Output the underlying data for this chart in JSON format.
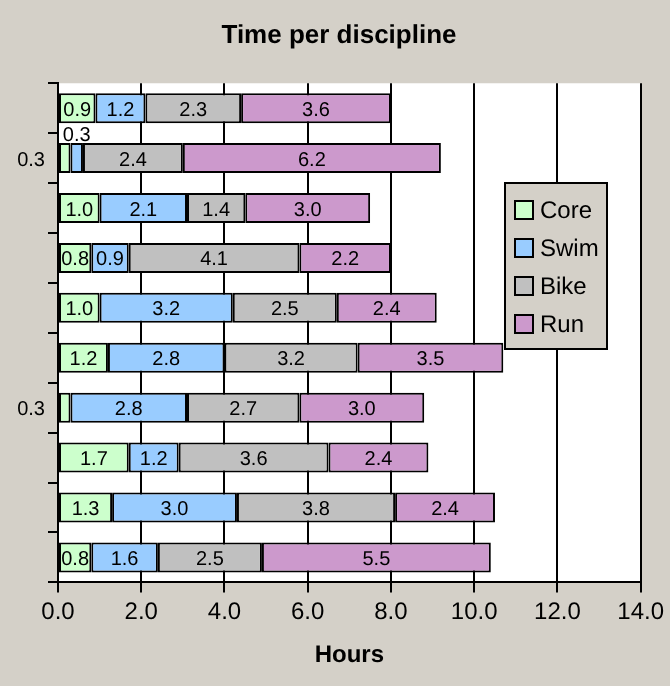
{
  "chart_data": {
    "type": "bar",
    "orientation": "horizontal",
    "stacked": true,
    "title": "Time per discipline",
    "xlabel": "Hours",
    "categories": [
      null,
      null,
      null,
      null,
      null,
      null,
      null,
      null,
      null,
      null
    ],
    "series": [
      {
        "name": "Core",
        "color": "#ccffcc",
        "values": [
          0.9,
          0.3,
          1.0,
          0.8,
          1.0,
          1.2,
          0.3,
          1.7,
          1.3,
          0.8
        ],
        "value_labels": [
          "0.9",
          "0.3",
          "1.0",
          "0.8",
          "1.0",
          "1.2",
          "0.3",
          "1.7",
          "1.3",
          "0.8"
        ]
      },
      {
        "name": "Swim",
        "color": "#99ccff",
        "values": [
          1.2,
          0.3,
          2.1,
          0.9,
          3.2,
          2.8,
          2.8,
          1.2,
          3.0,
          1.6
        ],
        "value_labels": [
          "1.2",
          "0.3",
          "2.1",
          "0.9",
          "3.2",
          "2.8",
          "2.8",
          "1.2",
          "3.0",
          "1.6"
        ]
      },
      {
        "name": "Bike",
        "color": "#c0c0c0",
        "values": [
          2.3,
          2.4,
          1.4,
          4.1,
          2.5,
          3.2,
          2.7,
          3.6,
          3.8,
          2.5
        ],
        "value_labels": [
          "2.3",
          "2.4",
          "1.4",
          "4.1",
          "2.5",
          "3.2",
          "2.7",
          "3.6",
          "3.8",
          "2.5"
        ]
      },
      {
        "name": "Run",
        "color": "#cc99cc",
        "values": [
          3.6,
          6.2,
          3.0,
          2.2,
          2.4,
          3.5,
          3.0,
          2.4,
          2.4,
          5.5
        ],
        "value_labels": [
          "3.6",
          "6.2",
          "3.0",
          "2.2",
          "2.4",
          "3.5",
          "3.0",
          "2.4",
          "2.4",
          "5.5"
        ]
      }
    ],
    "xlim": [
      0,
      14
    ],
    "xticks": [
      {
        "value": 0,
        "label": "0.0"
      },
      {
        "value": 2,
        "label": "2.0"
      },
      {
        "value": 4,
        "label": "4.0"
      },
      {
        "value": 6,
        "label": "6.0"
      },
      {
        "value": 8,
        "label": "8.0"
      },
      {
        "value": 10,
        "label": "10.0"
      },
      {
        "value": 12,
        "label": "12.0"
      },
      {
        "value": 14,
        "label": "14.0"
      }
    ],
    "grid": "x",
    "legend": "right"
  }
}
